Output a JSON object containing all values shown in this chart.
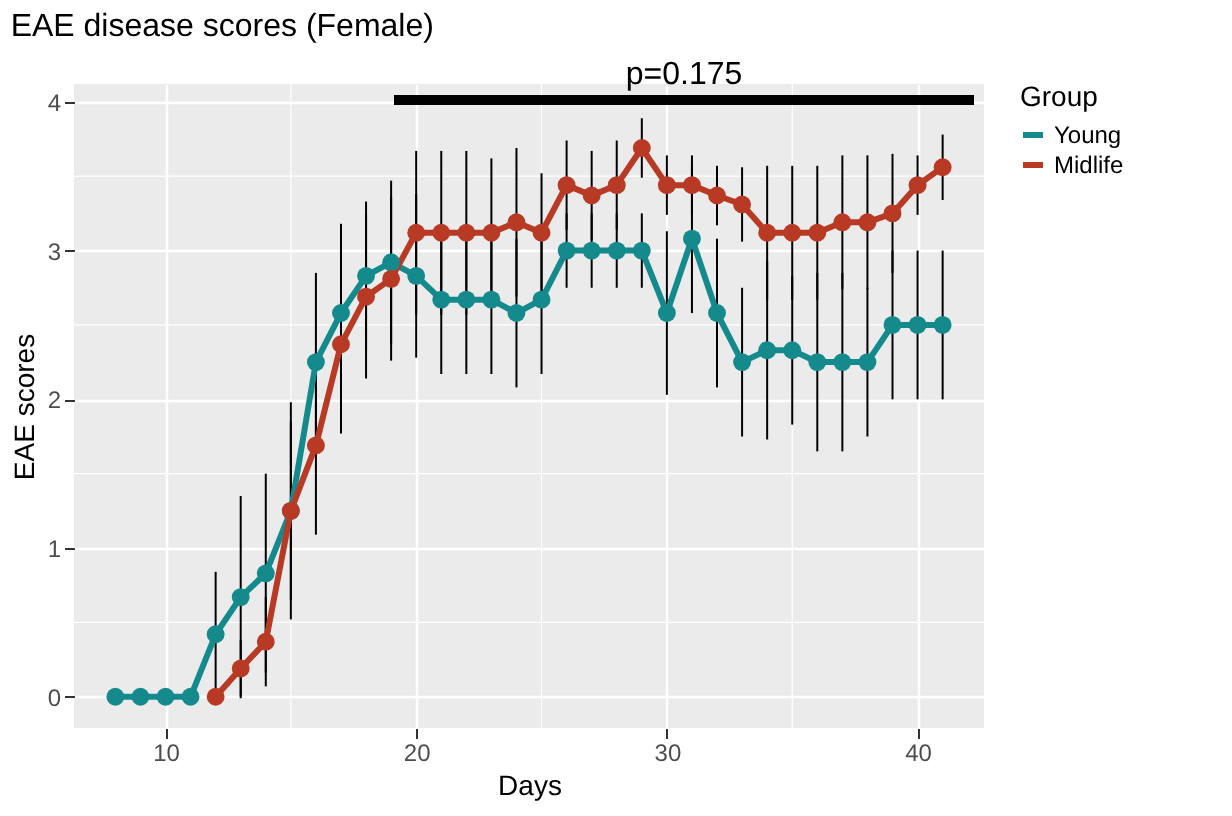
{
  "chart_data": {
    "type": "line",
    "title": "EAE disease scores (Female)",
    "xlabel": "Days",
    "ylabel": "EAE scores",
    "legend_title": "Group",
    "series": [
      {
        "name": "Young",
        "color": "#148a8c",
        "x": [
          8,
          9,
          10,
          11,
          12,
          13,
          14,
          15,
          16,
          17,
          18,
          19,
          20,
          21,
          22,
          23,
          24,
          25,
          26,
          27,
          28,
          29,
          30,
          31,
          32,
          33,
          34,
          35,
          36,
          37,
          38,
          39,
          40,
          41
        ],
        "values": [
          0,
          0,
          0,
          0,
          0.42,
          0.67,
          0.83,
          1.25,
          2.25,
          2.58,
          2.83,
          2.92,
          2.83,
          2.67,
          2.67,
          2.67,
          2.58,
          2.67,
          3.0,
          3.0,
          3.0,
          3.0,
          2.58,
          3.08,
          2.58,
          2.25,
          2.33,
          2.33,
          2.25,
          2.25,
          2.25,
          2.5,
          2.5,
          2.5
        ],
        "errors": [
          null,
          null,
          null,
          null,
          0.42,
          0.68,
          0.67,
          0.73,
          0.6,
          0.6,
          0.5,
          0.55,
          0.55,
          0.5,
          0.5,
          0.5,
          0.5,
          0.5,
          0.25,
          0.25,
          0.25,
          0.25,
          0.55,
          0.5,
          0.5,
          0.5,
          0.6,
          0.5,
          0.6,
          0.6,
          0.5,
          0.5,
          0.5,
          0.5
        ]
      },
      {
        "name": "Midlife",
        "color": "#b83a24",
        "x": [
          12,
          13,
          14,
          15,
          16,
          17,
          18,
          19,
          20,
          21,
          22,
          23,
          24,
          25,
          26,
          27,
          28,
          29,
          30,
          31,
          32,
          33,
          34,
          35,
          36,
          37,
          38,
          39,
          40,
          41
        ],
        "values": [
          0,
          0.19,
          0.37,
          1.25,
          1.69,
          2.37,
          2.69,
          2.81,
          3.12,
          3.12,
          3.12,
          3.12,
          3.19,
          3.12,
          3.44,
          3.37,
          3.44,
          3.69,
          3.44,
          3.44,
          3.37,
          3.31,
          3.12,
          3.12,
          3.12,
          3.19,
          3.19,
          3.25,
          3.44,
          3.56
        ],
        "errors": [
          null,
          0.19,
          0.3,
          0.6,
          0.6,
          0.6,
          0.55,
          0.55,
          0.55,
          0.55,
          0.55,
          0.5,
          0.5,
          0.4,
          0.3,
          0.3,
          0.3,
          0.2,
          0.2,
          0.2,
          0.2,
          0.25,
          0.45,
          0.45,
          0.45,
          0.45,
          0.45,
          0.4,
          0.2,
          0.22
        ]
      }
    ],
    "xlim": [
      6.35,
      42.65
    ],
    "xticks": [
      10,
      20,
      30,
      40
    ],
    "ylim": [
      -0.21,
      4.12
    ],
    "yticks": [
      0,
      1,
      2,
      3,
      4
    ],
    "annotations": [
      "p=0.175"
    ],
    "grid": true,
    "legend": "right",
    "marker": "circle",
    "line_style": "solid"
  }
}
